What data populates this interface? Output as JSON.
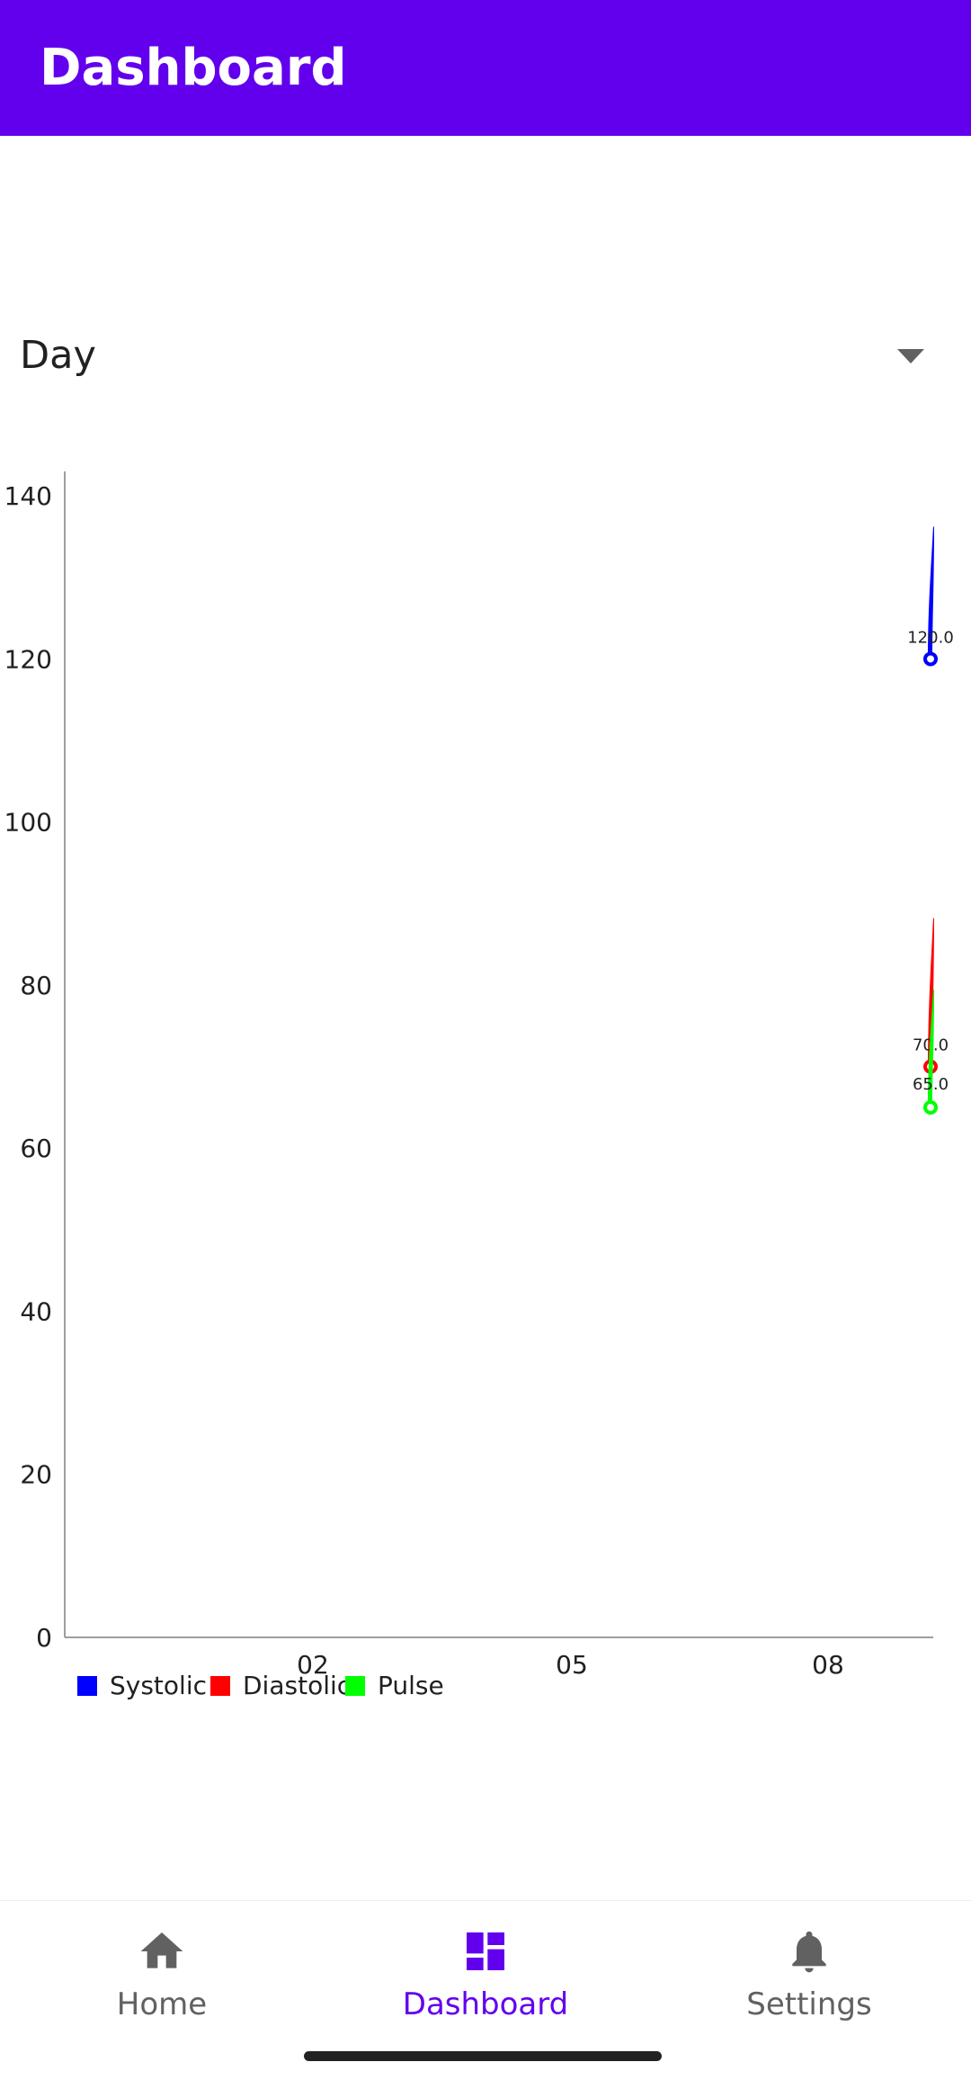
{
  "app_bar": {
    "title": "Dashboard",
    "color": "#6200EE"
  },
  "range_spinner": {
    "selected": "Day",
    "icon": "dropdown-arrow-icon"
  },
  "chart_data": {
    "type": "line",
    "y_ticks": [
      "0",
      "20",
      "40",
      "60",
      "80",
      "100",
      "120",
      "140"
    ],
    "ylim": [
      0,
      143
    ],
    "x_ticks": [
      "02",
      "05",
      "08"
    ],
    "legend_position": "bottom-left",
    "grid": false,
    "series": [
      {
        "name": "Systolic",
        "color": "#0000FF",
        "values": [
          120.0
        ],
        "value_labels": [
          "120.0"
        ]
      },
      {
        "name": "Diastolic",
        "color": "#FF0000",
        "values": [
          70.0
        ],
        "value_labels": [
          "70.0"
        ]
      },
      {
        "name": "Pulse",
        "color": "#00FF00",
        "values": [
          65.0
        ],
        "value_labels": [
          "65.0"
        ]
      }
    ]
  },
  "bottom_nav": {
    "items": [
      {
        "label": "Home",
        "icon": "home-icon",
        "active": false
      },
      {
        "label": "Dashboard",
        "icon": "dashboard-icon",
        "active": true
      },
      {
        "label": "Settings",
        "icon": "bell-icon",
        "active": false
      }
    ],
    "active_color": "#6200EE",
    "inactive_color": "#616161"
  }
}
